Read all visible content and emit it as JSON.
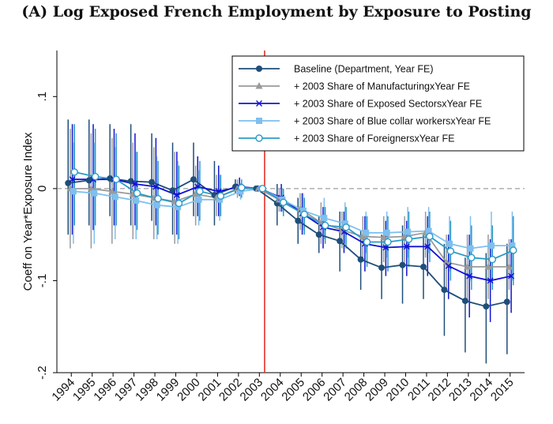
{
  "chart_data": {
    "type": "line",
    "title": "(A)  Log Exposed French Employment by Exposure to Posting",
    "xlabel": "",
    "ylabel": "Coeff on Year*Exposure Index",
    "ylim": [
      -0.2,
      0.15
    ],
    "yticks": [
      {
        "value": 0.1,
        "label": ".1"
      },
      {
        "value": 0.0,
        "label": "0"
      },
      {
        "value": -0.1,
        "label": "-.1"
      },
      {
        "value": -0.2,
        "label": "-.2"
      }
    ],
    "categories": [
      "1994",
      "1995",
      "1996",
      "1997",
      "1998",
      "1999",
      "2000",
      "2001",
      "2002",
      "2003",
      "2004",
      "2005",
      "2006",
      "2007",
      "2008",
      "2009",
      "2010",
      "2011",
      "2012",
      "2013",
      "2014",
      "2015"
    ],
    "reference_year": "2003",
    "reference_line_color": "#e8312a",
    "zero_line": true,
    "series": [
      {
        "name": "Baseline (Department, Year FE)",
        "color": "#1f4e79",
        "marker": "circle",
        "offset": -0.15,
        "values": [
          0.006,
          0.009,
          0.011,
          0.008,
          0.007,
          -0.002,
          0.01,
          -0.007,
          0.002,
          0.0,
          -0.016,
          -0.035,
          -0.05,
          -0.057,
          -0.077,
          -0.086,
          -0.083,
          -0.085,
          -0.11,
          -0.122,
          -0.128,
          -0.123
        ],
        "lower": [
          -0.05,
          -0.04,
          -0.03,
          -0.04,
          -0.035,
          -0.05,
          -0.03,
          -0.04,
          -0.005,
          0.0,
          -0.04,
          -0.06,
          -0.07,
          -0.09,
          -0.11,
          -0.12,
          -0.125,
          -0.12,
          -0.16,
          -0.178,
          -0.19,
          -0.18
        ],
        "upper": [
          0.075,
          0.075,
          0.07,
          0.07,
          0.06,
          0.05,
          0.05,
          0.03,
          0.01,
          0.0,
          0.005,
          -0.01,
          -0.03,
          -0.025,
          -0.045,
          -0.05,
          -0.04,
          -0.05,
          -0.06,
          -0.075,
          -0.07,
          -0.06
        ]
      },
      {
        "name": "+ 2003 Share of ManufacturingxYear FE",
        "color": "#9a9a9a",
        "marker": "triangle",
        "offset": -0.05,
        "values": [
          0.0,
          0.0,
          -0.003,
          -0.006,
          -0.01,
          -0.014,
          -0.006,
          -0.01,
          0.0,
          0.0,
          -0.012,
          -0.022,
          -0.037,
          -0.045,
          -0.052,
          -0.053,
          -0.052,
          -0.048,
          -0.08,
          -0.085,
          -0.085,
          -0.085
        ],
        "lower": [
          -0.065,
          -0.065,
          -0.06,
          -0.055,
          -0.055,
          -0.06,
          -0.04,
          -0.03,
          -0.01,
          0.0,
          -0.025,
          -0.045,
          -0.06,
          -0.065,
          -0.075,
          -0.08,
          -0.08,
          -0.075,
          -0.11,
          -0.12,
          -0.12,
          -0.11
        ],
        "upper": [
          0.065,
          0.06,
          0.055,
          0.05,
          0.045,
          0.04,
          0.025,
          0.015,
          0.01,
          0.0,
          0.0,
          -0.005,
          -0.015,
          -0.025,
          -0.03,
          -0.03,
          -0.03,
          -0.025,
          -0.05,
          -0.05,
          -0.05,
          -0.055
        ]
      },
      {
        "name": "+ 2003 Share of Exposed SectorsxYear FE",
        "color": "#1212d6",
        "marker": "x",
        "offset": 0.05,
        "values": [
          0.01,
          0.01,
          0.01,
          0.005,
          0.002,
          -0.007,
          0.002,
          -0.003,
          0.002,
          0.0,
          -0.01,
          -0.027,
          -0.042,
          -0.047,
          -0.06,
          -0.064,
          -0.063,
          -0.063,
          -0.084,
          -0.095,
          -0.1,
          -0.095
        ],
        "lower": [
          -0.05,
          -0.045,
          -0.04,
          -0.04,
          -0.04,
          -0.05,
          -0.03,
          -0.03,
          -0.008,
          0.0,
          -0.025,
          -0.05,
          -0.065,
          -0.07,
          -0.09,
          -0.095,
          -0.095,
          -0.095,
          -0.12,
          -0.14,
          -0.145,
          -0.135
        ],
        "upper": [
          0.07,
          0.07,
          0.065,
          0.06,
          0.055,
          0.04,
          0.035,
          0.025,
          0.012,
          0.0,
          0.005,
          -0.005,
          -0.02,
          -0.025,
          -0.03,
          -0.035,
          -0.035,
          -0.03,
          -0.05,
          -0.05,
          -0.055,
          -0.055
        ]
      },
      {
        "name": "+ 2003 Share of Blue collar workersxYear FE",
        "color": "#7fbfef",
        "marker": "square",
        "offset": 0.1,
        "values": [
          -0.003,
          -0.005,
          -0.009,
          -0.013,
          -0.018,
          -0.02,
          -0.012,
          -0.012,
          -0.003,
          0.0,
          -0.012,
          -0.024,
          -0.032,
          -0.038,
          -0.048,
          -0.048,
          -0.047,
          -0.046,
          -0.06,
          -0.065,
          -0.062,
          -0.062
        ],
        "lower": [
          -0.06,
          -0.06,
          -0.055,
          -0.055,
          -0.055,
          -0.06,
          -0.04,
          -0.035,
          -0.012,
          0.0,
          -0.025,
          -0.045,
          -0.055,
          -0.06,
          -0.07,
          -0.075,
          -0.075,
          -0.07,
          -0.09,
          -0.1,
          -0.1,
          -0.1
        ],
        "upper": [
          0.05,
          0.05,
          0.045,
          0.04,
          0.035,
          0.03,
          0.02,
          0.015,
          0.006,
          0.0,
          0.0,
          -0.005,
          -0.01,
          -0.015,
          -0.025,
          -0.025,
          -0.02,
          -0.02,
          -0.03,
          -0.03,
          -0.025,
          -0.025
        ]
      },
      {
        "name": "+ 2003 Share of ForeignersxYear FE",
        "color": "#2a9bc6",
        "marker": "hollow-circle",
        "offset": 0.15,
        "values": [
          0.018,
          0.013,
          0.01,
          -0.005,
          -0.011,
          -0.016,
          -0.003,
          -0.008,
          0.001,
          0.0,
          -0.015,
          -0.028,
          -0.04,
          -0.042,
          -0.058,
          -0.058,
          -0.055,
          -0.052,
          -0.068,
          -0.075,
          -0.077,
          -0.067
        ],
        "lower": [
          -0.04,
          -0.04,
          -0.04,
          -0.045,
          -0.05,
          -0.055,
          -0.035,
          -0.03,
          -0.01,
          0.0,
          -0.03,
          -0.05,
          -0.06,
          -0.065,
          -0.085,
          -0.09,
          -0.085,
          -0.08,
          -0.1,
          -0.11,
          -0.11,
          -0.105
        ],
        "upper": [
          0.07,
          0.065,
          0.06,
          0.04,
          0.03,
          0.025,
          0.03,
          0.015,
          0.01,
          0.0,
          0.0,
          -0.01,
          -0.02,
          -0.02,
          -0.03,
          -0.03,
          -0.025,
          -0.025,
          -0.035,
          -0.04,
          -0.04,
          -0.03
        ]
      }
    ]
  }
}
